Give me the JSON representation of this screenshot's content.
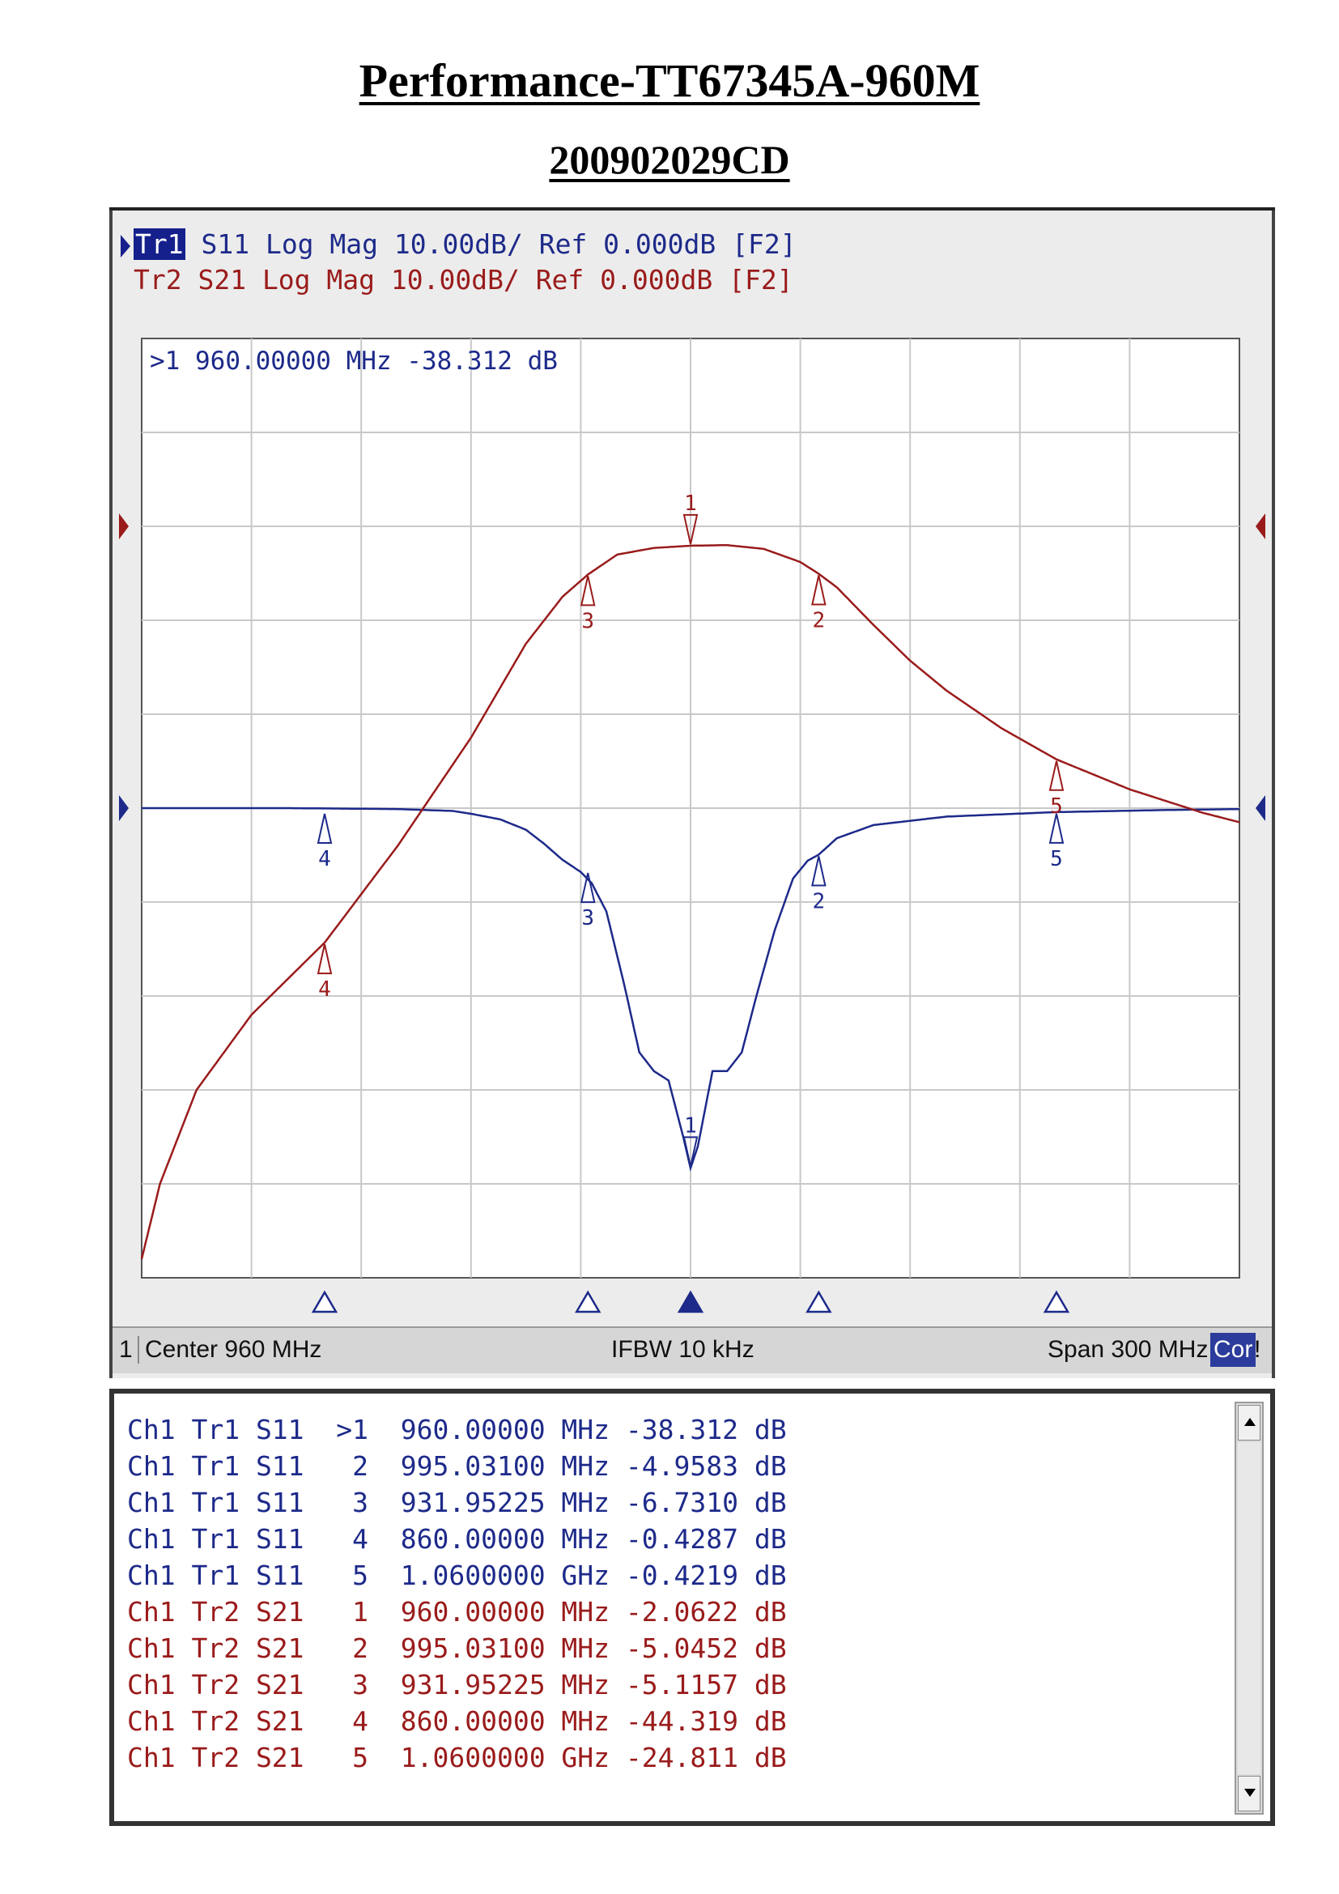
{
  "title": "Performance-TT67345A-960M",
  "subtitle": "200902029CD",
  "trace_headers": [
    {
      "badge": "Tr1",
      "text": " S11 Log Mag 10.00dB/ Ref 0.000dB [F2]",
      "color": "#1d2a8a"
    },
    {
      "badge": "",
      "text": "Tr2 S21 Log Mag 10.00dB/ Ref 0.000dB [F2]",
      "color": "#9a1b1b"
    }
  ],
  "active_marker_readout": ">1  960.00000 MHz -38.312 dB",
  "status_bar": {
    "channel": "1",
    "center": "Center 960 MHz",
    "ifbw": "IFBW 10 kHz",
    "span": "Span 300 MHz",
    "cor": "Cor",
    "excl": "!"
  },
  "marker_table": [
    {
      "text": "Ch1 Tr1 S11  >1  960.00000 MHz -38.312 dB",
      "trace": "Tr1"
    },
    {
      "text": "Ch1 Tr1 S11   2  995.03100 MHz -4.9583 dB",
      "trace": "Tr1"
    },
    {
      "text": "Ch1 Tr1 S11   3  931.95225 MHz -6.7310 dB",
      "trace": "Tr1"
    },
    {
      "text": "Ch1 Tr1 S11   4  860.00000 MHz -0.4287 dB",
      "trace": "Tr1"
    },
    {
      "text": "Ch1 Tr1 S11   5  1.0600000 GHz -0.4219 dB",
      "trace": "Tr1"
    },
    {
      "text": "Ch1 Tr2 S21   1  960.00000 MHz -2.0622 dB",
      "trace": "Tr2"
    },
    {
      "text": "Ch1 Tr2 S21   2  995.03100 MHz -5.0452 dB",
      "trace": "Tr2"
    },
    {
      "text": "Ch1 Tr2 S21   3  931.95225 MHz -5.1157 dB",
      "trace": "Tr2"
    },
    {
      "text": "Ch1 Tr2 S21   4  860.00000 MHz -44.319 dB",
      "trace": "Tr2"
    },
    {
      "text": "Ch1 Tr2 S21   5  1.0600000 GHz -24.811 dB",
      "trace": "Tr2"
    }
  ],
  "colors": {
    "tr1": "#1d2a8a",
    "tr2": "#9a1b1b",
    "grid": "#c8c8c8",
    "background": "#ececec",
    "plot_background": "#ffffff"
  },
  "chart_data": {
    "type": "line",
    "xlim_mhz": [
      810,
      1110
    ],
    "grid_divisions": {
      "x": 10,
      "y": 10
    },
    "y_scale_db_per_div": 10,
    "series": [
      {
        "name": "S11",
        "trace": "Tr1",
        "ref_db": 0,
        "ref_div_from_top": 5,
        "x_mhz": [
          810,
          850,
          880,
          895,
          900,
          908,
          915,
          920,
          925,
          930,
          933,
          937,
          942,
          946,
          950,
          954,
          958,
          960,
          962,
          966,
          970,
          974,
          978,
          983,
          988,
          992,
          995,
          1000,
          1010,
          1030,
          1060,
          1090,
          1110
        ],
        "y_db": [
          0,
          0,
          -0.1,
          -0.3,
          -0.6,
          -1.2,
          -2.3,
          -3.8,
          -5.5,
          -6.8,
          -8,
          -11,
          -19,
          -26,
          -28,
          -29,
          -35,
          -38.312,
          -36,
          -28,
          -28,
          -26,
          -20,
          -13,
          -7.5,
          -5.6,
          -4.9583,
          -3.2,
          -1.8,
          -0.9,
          -0.4219,
          -0.2,
          -0.1
        ],
        "markers": [
          {
            "id": "1",
            "x_mhz": 960.0,
            "y_db": -38.312
          },
          {
            "id": "2",
            "x_mhz": 995.031,
            "y_db": -4.9583
          },
          {
            "id": "3",
            "x_mhz": 931.95225,
            "y_db": -6.731
          },
          {
            "id": "4",
            "x_mhz": 860.0,
            "y_db": -0.4287
          },
          {
            "id": "5",
            "x_mhz": 1060.0,
            "y_db": -0.4219
          }
        ]
      },
      {
        "name": "S21",
        "trace": "Tr2",
        "ref_db": 0,
        "ref_div_from_top": 2,
        "x_mhz": [
          810,
          815,
          825,
          840,
          860,
          880,
          900,
          915,
          925,
          932,
          940,
          950,
          960,
          970,
          980,
          990,
          995,
          1000,
          1010,
          1020,
          1030,
          1045,
          1060,
          1080,
          1100,
          1110
        ],
        "y_db": [
          -78,
          -70,
          -60,
          -52,
          -44.319,
          -34,
          -22.5,
          -12.5,
          -7.5,
          -5.1157,
          -3,
          -2.3,
          -2.0622,
          -2.0,
          -2.4,
          -3.8,
          -5.0452,
          -6.5,
          -10.5,
          -14.3,
          -17.5,
          -21.5,
          -24.811,
          -28,
          -30.5,
          -31.5
        ],
        "markers": [
          {
            "id": "1",
            "x_mhz": 960.0,
            "y_db": -2.0622
          },
          {
            "id": "2",
            "x_mhz": 995.031,
            "y_db": -5.0452
          },
          {
            "id": "3",
            "x_mhz": 931.95225,
            "y_db": -5.1157
          },
          {
            "id": "4",
            "x_mhz": 860.0,
            "y_db": -44.319
          },
          {
            "id": "5",
            "x_mhz": 1060.0,
            "y_db": -24.811
          }
        ]
      }
    ],
    "active_marker": "1"
  }
}
